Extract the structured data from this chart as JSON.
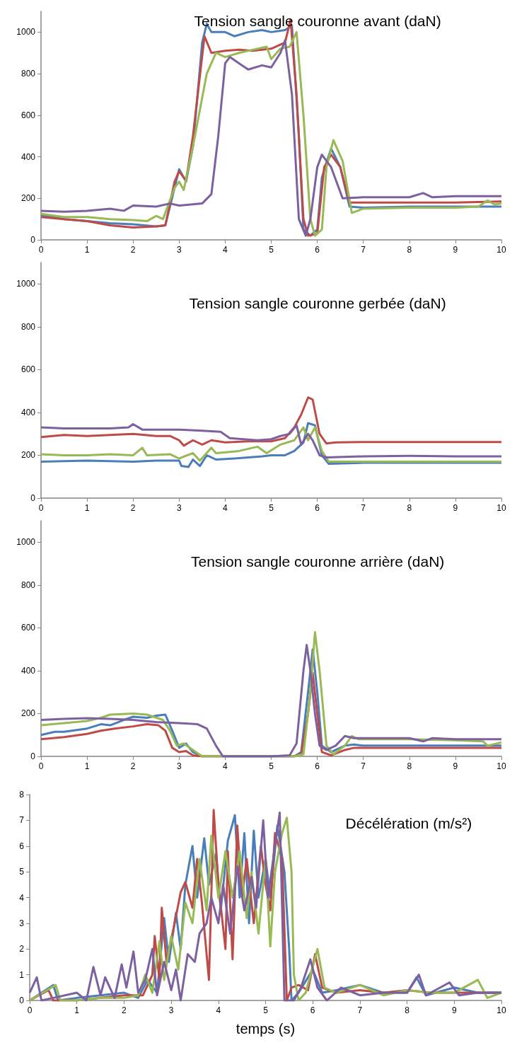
{
  "chart_data": [
    {
      "type": "line",
      "title": "Tension sangle couronne avant (daN)",
      "xlim": [
        0,
        10
      ],
      "xticks": [
        0,
        1,
        2,
        3,
        4,
        5,
        6,
        7,
        8,
        9,
        10
      ],
      "ylim": [
        0,
        1100
      ],
      "yticks": [
        0,
        200,
        400,
        600,
        800,
        1000
      ],
      "series": [
        {
          "color": "#4a7ebb",
          "x": [
            0,
            0.5,
            1,
            1.5,
            2,
            2.5,
            2.7,
            2.9,
            3.0,
            3.15,
            3.3,
            3.5,
            3.6,
            3.7,
            4,
            4.2,
            4.5,
            4.8,
            5,
            5.3,
            5.45,
            5.6,
            5.7,
            5.85,
            6.0,
            6.1,
            6.3,
            6.5,
            6.7,
            7,
            8,
            9,
            10
          ],
          "values": [
            120,
            100,
            90,
            80,
            75,
            65,
            70,
            250,
            340,
            280,
            450,
            950,
            1040,
            1000,
            1000,
            980,
            1000,
            1010,
            1000,
            1010,
            1030,
            500,
            50,
            20,
            50,
            300,
            440,
            350,
            160,
            155,
            160,
            160,
            160
          ]
        },
        {
          "color": "#be4b48",
          "x": [
            0,
            0.5,
            1,
            1.5,
            2,
            2.5,
            2.7,
            2.9,
            3.0,
            3.15,
            3.3,
            3.55,
            3.7,
            4,
            4.3,
            4.6,
            5,
            5.3,
            5.42,
            5.55,
            5.7,
            5.8,
            6.0,
            6.15,
            6.3,
            6.5,
            6.7,
            7,
            8,
            9,
            10
          ],
          "values": [
            110,
            100,
            90,
            70,
            60,
            65,
            70,
            280,
            330,
            285,
            500,
            980,
            900,
            910,
            915,
            910,
            920,
            950,
            1060,
            700,
            100,
            20,
            30,
            350,
            410,
            350,
            180,
            180,
            180,
            180,
            185
          ]
        },
        {
          "color": "#98b954",
          "x": [
            0,
            0.5,
            1,
            1.5,
            2,
            2.3,
            2.5,
            2.65,
            2.9,
            3.0,
            3.1,
            3.3,
            3.6,
            3.8,
            4,
            4.3,
            4.7,
            4.9,
            5,
            5.2,
            5.4,
            5.55,
            5.7,
            5.85,
            5.95,
            6.1,
            6.2,
            6.35,
            6.55,
            6.75,
            7,
            8,
            9,
            9.5,
            9.7,
            9.85,
            10
          ],
          "values": [
            125,
            110,
            110,
            100,
            95,
            90,
            115,
            100,
            250,
            280,
            240,
            450,
            800,
            900,
            880,
            900,
            920,
            930,
            870,
            920,
            930,
            1000,
            600,
            100,
            20,
            50,
            350,
            480,
            380,
            130,
            150,
            155,
            155,
            160,
            190,
            170,
            175
          ]
        },
        {
          "color": "#7d60a0",
          "x": [
            0,
            0.5,
            1,
            1.5,
            1.8,
            2,
            2.5,
            2.8,
            3,
            3.5,
            3.7,
            3.85,
            4,
            4.1,
            4.3,
            4.5,
            4.8,
            5,
            5.2,
            5.3,
            5.45,
            5.6,
            5.75,
            5.85,
            6.0,
            6.1,
            6.3,
            6.55,
            7,
            8,
            8.3,
            8.5,
            9,
            10
          ],
          "values": [
            140,
            135,
            140,
            150,
            140,
            165,
            160,
            175,
            165,
            175,
            220,
            500,
            850,
            880,
            850,
            820,
            840,
            830,
            900,
            960,
            700,
            100,
            20,
            100,
            350,
            410,
            350,
            200,
            205,
            205,
            225,
            205,
            210,
            210
          ]
        }
      ]
    },
    {
      "type": "line",
      "title": "Tension sangle couronne gerbée (daN)",
      "xlim": [
        0,
        10
      ],
      "xticks": [
        0,
        1,
        2,
        3,
        4,
        5,
        6,
        7,
        8,
        9,
        10
      ],
      "ylim": [
        0,
        1100
      ],
      "yticks": [
        0,
        200,
        400,
        600,
        800,
        1000
      ],
      "series": [
        {
          "color": "#4a7ebb",
          "x": [
            0,
            1,
            2,
            2.5,
            3,
            3.05,
            3.2,
            3.3,
            3.45,
            3.6,
            3.8,
            4.2,
            4.8,
            5,
            5.3,
            5.5,
            5.7,
            5.8,
            5.95,
            6.1,
            6.25,
            7,
            8,
            9,
            10
          ],
          "values": [
            170,
            175,
            170,
            175,
            175,
            150,
            145,
            180,
            150,
            200,
            180,
            185,
            195,
            200,
            200,
            220,
            260,
            350,
            340,
            200,
            160,
            165,
            165,
            165,
            165
          ]
        },
        {
          "color": "#be4b48",
          "x": [
            0,
            0.5,
            1,
            1.5,
            2,
            2.5,
            2.8,
            3,
            3.1,
            3.3,
            3.5,
            3.7,
            4,
            4.5,
            5,
            5.3,
            5.5,
            5.65,
            5.8,
            5.9,
            6.05,
            6.2,
            6.4,
            7,
            8,
            9,
            10
          ],
          "values": [
            285,
            295,
            290,
            295,
            300,
            290,
            290,
            270,
            245,
            270,
            250,
            270,
            260,
            265,
            265,
            280,
            330,
            390,
            470,
            460,
            300,
            255,
            260,
            262,
            262,
            262,
            262
          ]
        },
        {
          "color": "#98b954",
          "x": [
            0,
            0.5,
            1,
            1.5,
            2,
            2.2,
            2.3,
            2.8,
            3,
            3.3,
            3.45,
            3.7,
            3.8,
            4.3,
            4.7,
            4.9,
            5.2,
            5.5,
            5.7,
            5.8,
            5.95,
            6.1,
            6.25,
            7,
            8,
            9,
            10
          ],
          "values": [
            205,
            200,
            200,
            205,
            200,
            235,
            200,
            205,
            185,
            210,
            175,
            235,
            210,
            220,
            240,
            210,
            250,
            270,
            330,
            270,
            330,
            220,
            170,
            170,
            170,
            170,
            170
          ]
        },
        {
          "color": "#7d60a0",
          "x": [
            0,
            0.5,
            1,
            1.5,
            1.9,
            2,
            2.2,
            3,
            3.5,
            3.9,
            4.1,
            4.4,
            4.7,
            5,
            5.2,
            5.4,
            5.55,
            5.65,
            5.8,
            5.9,
            6.05,
            6.2,
            7,
            8,
            9,
            10
          ],
          "values": [
            330,
            325,
            325,
            325,
            330,
            345,
            320,
            320,
            315,
            310,
            280,
            275,
            270,
            275,
            290,
            300,
            340,
            250,
            300,
            270,
            200,
            190,
            195,
            197,
            195,
            195
          ]
        }
      ]
    },
    {
      "type": "line",
      "title": "Tension sangle couronne arrière (daN)",
      "xlim": [
        0,
        10
      ],
      "xticks": [
        0,
        1,
        2,
        3,
        4,
        5,
        6,
        7,
        8,
        9,
        10
      ],
      "ylim": [
        0,
        1100
      ],
      "yticks": [
        0,
        200,
        400,
        600,
        800,
        1000
      ],
      "series": [
        {
          "color": "#4a7ebb",
          "x": [
            0,
            0.3,
            0.5,
            1,
            1.3,
            1.5,
            1.8,
            2,
            2.3,
            2.5,
            2.7,
            2.85,
            3,
            3.15,
            3.3,
            3.5,
            4,
            5,
            5.5,
            5.65,
            5.8,
            5.9,
            6.0,
            6.1,
            6.3,
            6.6,
            6.8,
            7,
            8,
            9,
            10
          ],
          "values": [
            100,
            115,
            115,
            130,
            150,
            145,
            170,
            185,
            180,
            190,
            195,
            120,
            40,
            60,
            20,
            0,
            0,
            0,
            0,
            20,
            300,
            500,
            300,
            50,
            20,
            50,
            55,
            50,
            50,
            50,
            50
          ]
        },
        {
          "color": "#be4b48",
          "x": [
            0,
            0.5,
            1,
            1.3,
            1.6,
            2,
            2.3,
            2.55,
            2.7,
            2.85,
            3,
            3.15,
            3.3,
            3.5,
            4,
            5,
            5.5,
            5.65,
            5.8,
            5.9,
            6.0,
            6.1,
            6.3,
            6.6,
            6.8,
            7,
            8,
            9,
            10
          ],
          "values": [
            80,
            90,
            105,
            120,
            130,
            140,
            150,
            145,
            120,
            40,
            20,
            25,
            5,
            0,
            0,
            0,
            0,
            10,
            200,
            390,
            200,
            20,
            5,
            30,
            40,
            40,
            40,
            40,
            40
          ]
        },
        {
          "color": "#98b954",
          "x": [
            0,
            0.5,
            1,
            1.3,
            1.5,
            2,
            2.3,
            2.65,
            2.8,
            2.95,
            3.1,
            3.3,
            3.5,
            4,
            5,
            5.5,
            5.7,
            5.85,
            5.95,
            6.05,
            6.2,
            6.35,
            6.6,
            6.75,
            6.9,
            7,
            8,
            9,
            9.6,
            9.7,
            9.9,
            10
          ],
          "values": [
            145,
            155,
            165,
            180,
            195,
            200,
            195,
            170,
            120,
            50,
            60,
            30,
            0,
            0,
            0,
            0,
            10,
            300,
            580,
            400,
            50,
            10,
            50,
            95,
            80,
            80,
            80,
            75,
            70,
            50,
            60,
            65
          ]
        },
        {
          "color": "#7d60a0",
          "x": [
            0,
            0.5,
            1,
            1.5,
            2,
            2.5,
            3,
            3.4,
            3.6,
            3.8,
            3.95,
            4.5,
            5,
            5.4,
            5.55,
            5.7,
            5.77,
            5.85,
            5.95,
            6.05,
            6.2,
            6.4,
            6.6,
            6.8,
            7,
            8,
            8.3,
            8.5,
            9,
            10
          ],
          "values": [
            170,
            175,
            178,
            175,
            170,
            160,
            155,
            150,
            130,
            50,
            0,
            0,
            0,
            5,
            60,
            400,
            520,
            400,
            200,
            50,
            30,
            50,
            95,
            85,
            85,
            85,
            70,
            85,
            80,
            80
          ]
        }
      ]
    },
    {
      "type": "line",
      "title": "Décélération (m/s²)",
      "xlabel": "temps (s)",
      "xlim": [
        0,
        10
      ],
      "xticks": [
        0,
        1,
        2,
        3,
        4,
        5,
        6,
        7,
        8,
        9,
        10
      ],
      "ylim": [
        0,
        8
      ],
      "yticks": [
        0,
        1,
        2,
        3,
        4,
        5,
        6,
        7,
        8
      ],
      "series": [
        {
          "color": "#4a7ebb",
          "x": [
            0,
            0.5,
            0.6,
            1,
            1.5,
            2,
            2.3,
            2.5,
            2.7,
            2.85,
            2.95,
            3.1,
            3.2,
            3.3,
            3.45,
            3.55,
            3.7,
            3.8,
            3.95,
            4.05,
            4.2,
            4.35,
            4.45,
            4.55,
            4.65,
            4.75,
            4.85,
            5,
            5.1,
            5.25,
            5.4,
            5.5,
            5.55,
            5.7,
            6,
            6.2,
            6.5,
            7,
            7.5,
            8,
            8.2,
            8.4,
            9,
            9.5,
            10
          ],
          "values": [
            0,
            0.6,
            0,
            0.1,
            0.2,
            0.3,
            0.1,
            0.8,
            0.3,
            3.2,
            1.5,
            3.4,
            2,
            4.5,
            6,
            4,
            6.3,
            4.5,
            5.7,
            3.5,
            6.2,
            7.2,
            4,
            6.5,
            3,
            6.6,
            4,
            5.5,
            4,
            6.8,
            5,
            2,
            0,
            0.3,
            1.2,
            0.3,
            0.4,
            0.6,
            0.3,
            0.3,
            0.9,
            0.2,
            0.5,
            0.3,
            0.3
          ]
        },
        {
          "color": "#be4b48",
          "x": [
            0,
            0.4,
            0.5,
            1,
            1.5,
            2,
            2.4,
            2.6,
            2.65,
            2.75,
            2.8,
            2.9,
            3.05,
            3.2,
            3.3,
            3.45,
            3.55,
            3.65,
            3.8,
            3.9,
            4,
            4.15,
            4.2,
            4.3,
            4.4,
            4.5,
            4.6,
            4.75,
            4.9,
            5,
            5.1,
            5.2,
            5.35,
            5.45,
            5.55,
            5.7,
            5.9,
            6.05,
            6.2,
            6.5,
            7,
            7.5,
            8,
            8.5,
            9,
            9.5,
            10
          ],
          "values": [
            0,
            0.4,
            0,
            0,
            0.1,
            0.2,
            0.2,
            1,
            2.5,
            0.8,
            3.6,
            1.5,
            2.8,
            4.2,
            4.6,
            3.6,
            5.5,
            3.8,
            0.8,
            7.4,
            4.5,
            2,
            5.8,
            1.6,
            6.8,
            4,
            5.5,
            3,
            6,
            4.5,
            3.5,
            6.5,
            5.5,
            0,
            0.5,
            0.6,
            0.4,
            1.8,
            0.5,
            0.3,
            0.4,
            0.3,
            0.4,
            0.3,
            0.3,
            0.3,
            0.3
          ]
        },
        {
          "color": "#98b954",
          "x": [
            0,
            0.55,
            0.65,
            1,
            1.5,
            2,
            2.3,
            2.45,
            2.6,
            2.75,
            2.85,
            3,
            3.15,
            3.3,
            3.45,
            3.6,
            3.75,
            3.85,
            4,
            4.15,
            4.3,
            4.45,
            4.6,
            4.7,
            4.85,
            5.0,
            5.1,
            5.2,
            5.35,
            5.45,
            5.55,
            5.6,
            5.7,
            5.85,
            6.1,
            6.25,
            6.5,
            7,
            7.5,
            8,
            8.5,
            9,
            9.5,
            9.7,
            10
          ],
          "values": [
            0,
            0.6,
            0,
            0,
            0.1,
            0.1,
            0.2,
            1,
            0.3,
            2.3,
            0.8,
            2.5,
            1.2,
            3.8,
            3,
            5.5,
            3.5,
            6.4,
            4,
            5.8,
            4,
            5.8,
            3.2,
            5,
            2.6,
            5.5,
            2.1,
            5,
            6.5,
            7.1,
            5,
            1,
            0,
            0.3,
            2,
            0.5,
            0.3,
            0.6,
            0.2,
            0.4,
            0.3,
            0.3,
            0.8,
            0.1,
            0.3
          ]
        },
        {
          "color": "#7d60a0",
          "x": [
            0,
            0.15,
            0.25,
            0.5,
            1,
            1.2,
            1.35,
            1.5,
            1.6,
            1.8,
            1.95,
            2.05,
            2.2,
            2.3,
            2.45,
            2.6,
            2.7,
            2.85,
            3,
            3.1,
            3.2,
            3.35,
            3.5,
            3.6,
            3.75,
            3.85,
            4,
            4.1,
            4.25,
            4.4,
            4.55,
            4.7,
            4.8,
            4.95,
            5.05,
            5.2,
            5.3,
            5.4,
            5.6,
            5.75,
            5.95,
            6.1,
            6.3,
            6.6,
            7,
            7.5,
            8,
            8.25,
            8.4,
            8.9,
            9.1,
            9.5,
            10
          ],
          "values": [
            0.3,
            0.9,
            0,
            0.1,
            0.3,
            0,
            1.3,
            0.2,
            0.9,
            0.1,
            1.4,
            0.5,
            1.9,
            0.3,
            0.8,
            2,
            0.2,
            1.5,
            0.4,
            1.2,
            0,
            1.8,
            1.5,
            2.6,
            3,
            4,
            3,
            4.5,
            2.6,
            5.2,
            3.5,
            4.8,
            3.6,
            7.0,
            4,
            6,
            7.3,
            0,
            0,
            0.5,
            1.6,
            0.5,
            0,
            0.5,
            0.2,
            0.3,
            0.3,
            1.0,
            0.2,
            0.7,
            0.2,
            0.3,
            0.3
          ]
        }
      ]
    }
  ]
}
